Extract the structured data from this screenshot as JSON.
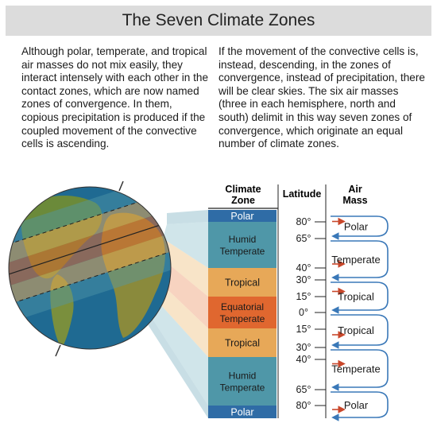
{
  "title": "The Seven Climate Zones",
  "paragraphs": {
    "left": "Although polar, temperate, and tropical air masses do not mix easily, they interact intensely with each other in the contact zones, which are now named zones of convergence. In them, copious precipitation is produced if the coupled movement of the convective cells is ascending.",
    "right": "If the movement of the convective cells is, instead, descending, in the zones of convergence, instead of precipitation, there will be clear skies. The six air masses (three in each hemisphere, north and south) delimit in this way seven zones of convergence, which originate an equal number of climate zones."
  },
  "headers": {
    "zone": [
      "Climate",
      "Zone"
    ],
    "latitude": "Latitude",
    "air_mass": [
      "Air",
      "Mass"
    ]
  },
  "zones": [
    {
      "label": [
        "Polar"
      ],
      "color": "#2f6ca6"
    },
    {
      "label": [
        "Humid",
        "Temperate"
      ],
      "color": "#4f97a8"
    },
    {
      "label": [
        "Tropical"
      ],
      "color": "#e7a858"
    },
    {
      "label": [
        "Equatorial",
        "Temperate"
      ],
      "color": "#e0672f"
    },
    {
      "label": [
        "Tropical"
      ],
      "color": "#e7a858"
    },
    {
      "label": [
        "Humid",
        "Temperate"
      ],
      "color": "#4f97a8"
    },
    {
      "label": [
        "Polar"
      ],
      "color": "#2f6ca6"
    }
  ],
  "latitudes": [
    "80°",
    "65°",
    "40°",
    "30°",
    "15°",
    "0°",
    "15°",
    "30°",
    "40°",
    "65°",
    "80°"
  ],
  "air_masses": [
    "Polar",
    "Temperate",
    "Tropical",
    "Tropical",
    "Temperate",
    "Polar"
  ],
  "colors": {
    "arrow_blue": "#3a78b8",
    "arrow_red": "#c9472b",
    "ocean": "#1f6a92",
    "land": "#6b8a3a"
  }
}
